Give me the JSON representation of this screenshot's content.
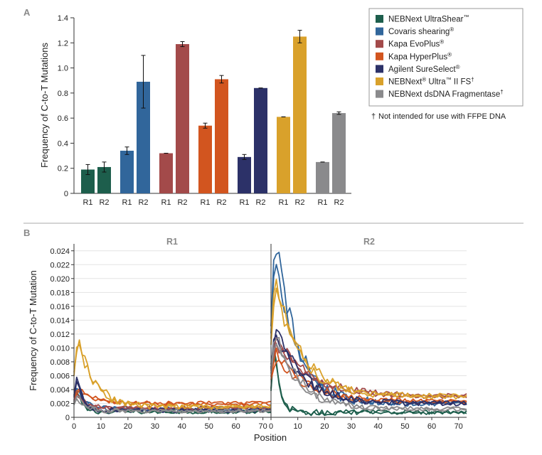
{
  "panel_a_label": "A",
  "panel_b_label": "B",
  "footnote": "Not intended for use with FFPE DNA",
  "footnote_mark": "†",
  "legend": [
    {
      "name": "NEBNext UltraShear",
      "mark": "™",
      "color": "#1d5e4c"
    },
    {
      "name": "Covaris shearing",
      "mark": "®",
      "color": "#31669b"
    },
    {
      "name": "Kapa EvoPlus",
      "mark": "®",
      "color": "#a34a4a"
    },
    {
      "name": "Kapa HyperPlus",
      "mark": "®",
      "color": "#d2551f"
    },
    {
      "name": "Agilent SureSelect",
      "mark": "®",
      "color": "#2c3168"
    },
    {
      "name": "NEBNext Ultra II FS",
      "mark": "®™†",
      "color": "#d9a12b"
    },
    {
      "name": "NEBNext dsDNA Fragmentase",
      "mark": "†",
      "color": "#8a8a8c"
    }
  ],
  "chart_data": [
    {
      "type": "bar",
      "title": "",
      "xlabel": "",
      "ylabel": "Frequency of C-to-T Mutations",
      "ylim": [
        0,
        1.4
      ],
      "yticks": [
        "0",
        "0.2",
        "0.4",
        "0.6",
        "0.8",
        "1.0",
        "1.2",
        "1.4"
      ],
      "groups": [
        {
          "name": "NEBNext UltraShear",
          "color": "#1d5e4c",
          "categories": [
            "R1",
            "R2"
          ],
          "values": [
            0.19,
            0.21
          ],
          "errors": [
            0.04,
            0.04
          ]
        },
        {
          "name": "Covaris shearing",
          "color": "#31669b",
          "categories": [
            "R1",
            "R2"
          ],
          "values": [
            0.34,
            0.89
          ],
          "errors": [
            0.03,
            0.21
          ]
        },
        {
          "name": "Kapa EvoPlus",
          "color": "#a34a4a",
          "categories": [
            "R1",
            "R2"
          ],
          "values": [
            0.32,
            1.19
          ],
          "errors": [
            0.0,
            0.02
          ]
        },
        {
          "name": "Kapa HyperPlus",
          "color": "#d2551f",
          "categories": [
            "R1",
            "R2"
          ],
          "values": [
            0.54,
            0.91
          ],
          "errors": [
            0.02,
            0.03
          ]
        },
        {
          "name": "Agilent SureSelect",
          "color": "#2c3168",
          "categories": [
            "R1",
            "R2"
          ],
          "values": [
            0.29,
            0.84
          ],
          "errors": [
            0.02,
            0.0
          ]
        },
        {
          "name": "NEBNext Ultra II FS",
          "color": "#d9a12b",
          "categories": [
            "R1",
            "R2"
          ],
          "values": [
            0.61,
            1.25
          ],
          "errors": [
            0.0,
            0.05
          ]
        },
        {
          "name": "NEBNext dsDNA Fragmentase",
          "color": "#8a8a8c",
          "categories": [
            "R1",
            "R2"
          ],
          "values": [
            0.25,
            0.64
          ],
          "errors": [
            0.0,
            0.01
          ]
        }
      ]
    },
    {
      "type": "line",
      "title": "",
      "panels": [
        "R1",
        "R2"
      ],
      "xlabel": "Position",
      "ylabel": "Frequency of C-to-T Mutation",
      "xlim": [
        0,
        73
      ],
      "ylim": [
        0,
        0.025
      ],
      "xticks": [
        "0",
        "10",
        "20",
        "30",
        "40",
        "50",
        "60",
        "70"
      ],
      "yticks": [
        "0",
        "0.002",
        "0.004",
        "0.006",
        "0.008",
        "0.010",
        "0.012",
        "0.014",
        "0.016",
        "0.018",
        "0.020",
        "0.022",
        "0.024"
      ],
      "series": [
        {
          "name": "NEBNext UltraShear",
          "color": "#1d5e4c",
          "R1": {
            "peak": 0.003,
            "base": 0.0008,
            "decay": 2
          },
          "R2": {
            "peak": 0.0075,
            "base": 0.0007,
            "decay": 2
          }
        },
        {
          "name": "Covaris shearing",
          "color": "#31669b",
          "R1": {
            "peak": 0.0035,
            "base": 0.0012,
            "decay": 3
          },
          "R2": {
            "peak": 0.0241,
            "base": 0.002,
            "decay": 8
          }
        },
        {
          "name": "Kapa EvoPlus",
          "color": "#a34a4a",
          "R1": {
            "peak": 0.003,
            "base": 0.0013,
            "decay": 3
          },
          "R2": {
            "peak": 0.011,
            "base": 0.003,
            "decay": 13
          }
        },
        {
          "name": "Kapa HyperPlus",
          "color": "#d2551f",
          "R1": {
            "peak": 0.0038,
            "base": 0.002,
            "decay": 6
          },
          "R2": {
            "peak": 0.009,
            "base": 0.0022,
            "decay": 12
          }
        },
        {
          "name": "Agilent SureSelect",
          "color": "#2c3168",
          "R1": {
            "peak": 0.0048,
            "base": 0.001,
            "decay": 2
          },
          "R2": {
            "peak": 0.0125,
            "base": 0.002,
            "decay": 10
          }
        },
        {
          "name": "NEBNext Ultra II FS",
          "color": "#d9a12b",
          "R1": {
            "peak": 0.0107,
            "base": 0.0015,
            "decay": 6
          },
          "R2": {
            "peak": 0.0185,
            "base": 0.003,
            "decay": 10
          }
        },
        {
          "name": "NEBNext dsDNA Fragmentase",
          "color": "#8a8a8c",
          "R1": {
            "peak": 0.0025,
            "base": 0.0009,
            "decay": 3
          },
          "R2": {
            "peak": 0.0115,
            "base": 0.0012,
            "decay": 9
          }
        }
      ]
    }
  ]
}
